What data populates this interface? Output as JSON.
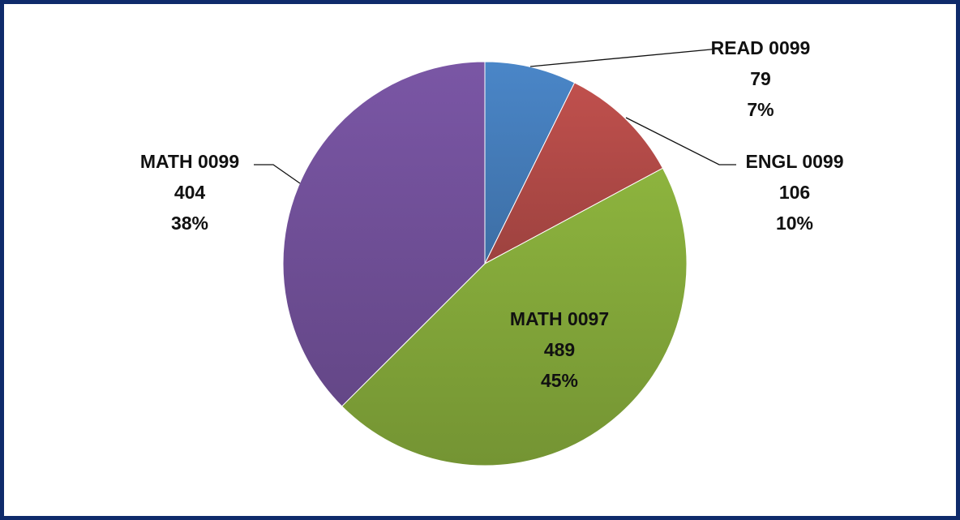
{
  "chart_data": {
    "type": "pie",
    "title": "",
    "slices": [
      {
        "label": "READ 0099",
        "value": 79,
        "percent": "7%",
        "color": "#4a86c8"
      },
      {
        "label": "ENGL 0099",
        "value": 106,
        "percent": "10%",
        "color": "#c0504d"
      },
      {
        "label": "MATH 0097",
        "value": 489,
        "percent": "45%",
        "color": "#8db43e"
      },
      {
        "label": "MATH 0099",
        "value": 404,
        "percent": "38%",
        "color": "#7a56a5"
      }
    ],
    "legend": "none",
    "start_angle": "12 o'clock, clockwise"
  },
  "colors": {
    "frame_border": "#0f2b6b",
    "background": "#ffffff"
  }
}
